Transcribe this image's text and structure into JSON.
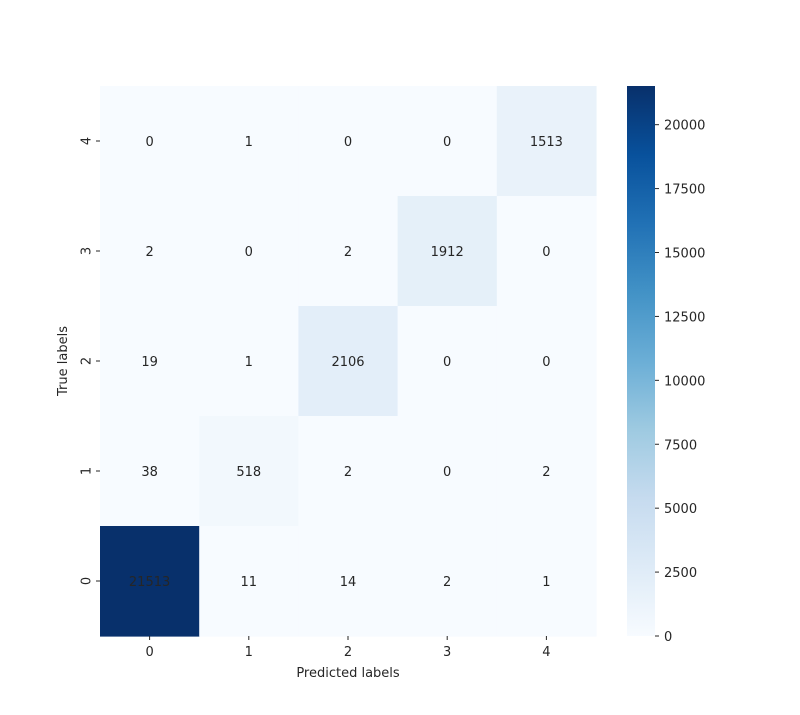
{
  "chart_data": {
    "type": "heatmap",
    "title": "",
    "xlabel": "Predicted labels",
    "ylabel": "True labels",
    "x_categories": [
      "0",
      "1",
      "2",
      "3",
      "4"
    ],
    "y_categories_top_to_bottom": [
      "4",
      "3",
      "2",
      "1",
      "0"
    ],
    "matrix_top_to_bottom": [
      [
        0,
        1,
        0,
        0,
        1513
      ],
      [
        2,
        0,
        2,
        1912,
        0
      ],
      [
        19,
        1,
        2106,
        0,
        0
      ],
      [
        38,
        518,
        2,
        0,
        2
      ],
      [
        21513,
        11,
        14,
        2,
        1
      ]
    ],
    "colorbar": {
      "colormap": "Blues",
      "vmin": 0,
      "vmax": 21513,
      "ticks": [
        0,
        2500,
        5000,
        7500,
        10000,
        12500,
        15000,
        17500,
        20000
      ],
      "tick_labels": [
        "0",
        "2500",
        "5000",
        "7500",
        "10000",
        "12500",
        "15000",
        "17500",
        "20000"
      ]
    },
    "annotations": true
  }
}
